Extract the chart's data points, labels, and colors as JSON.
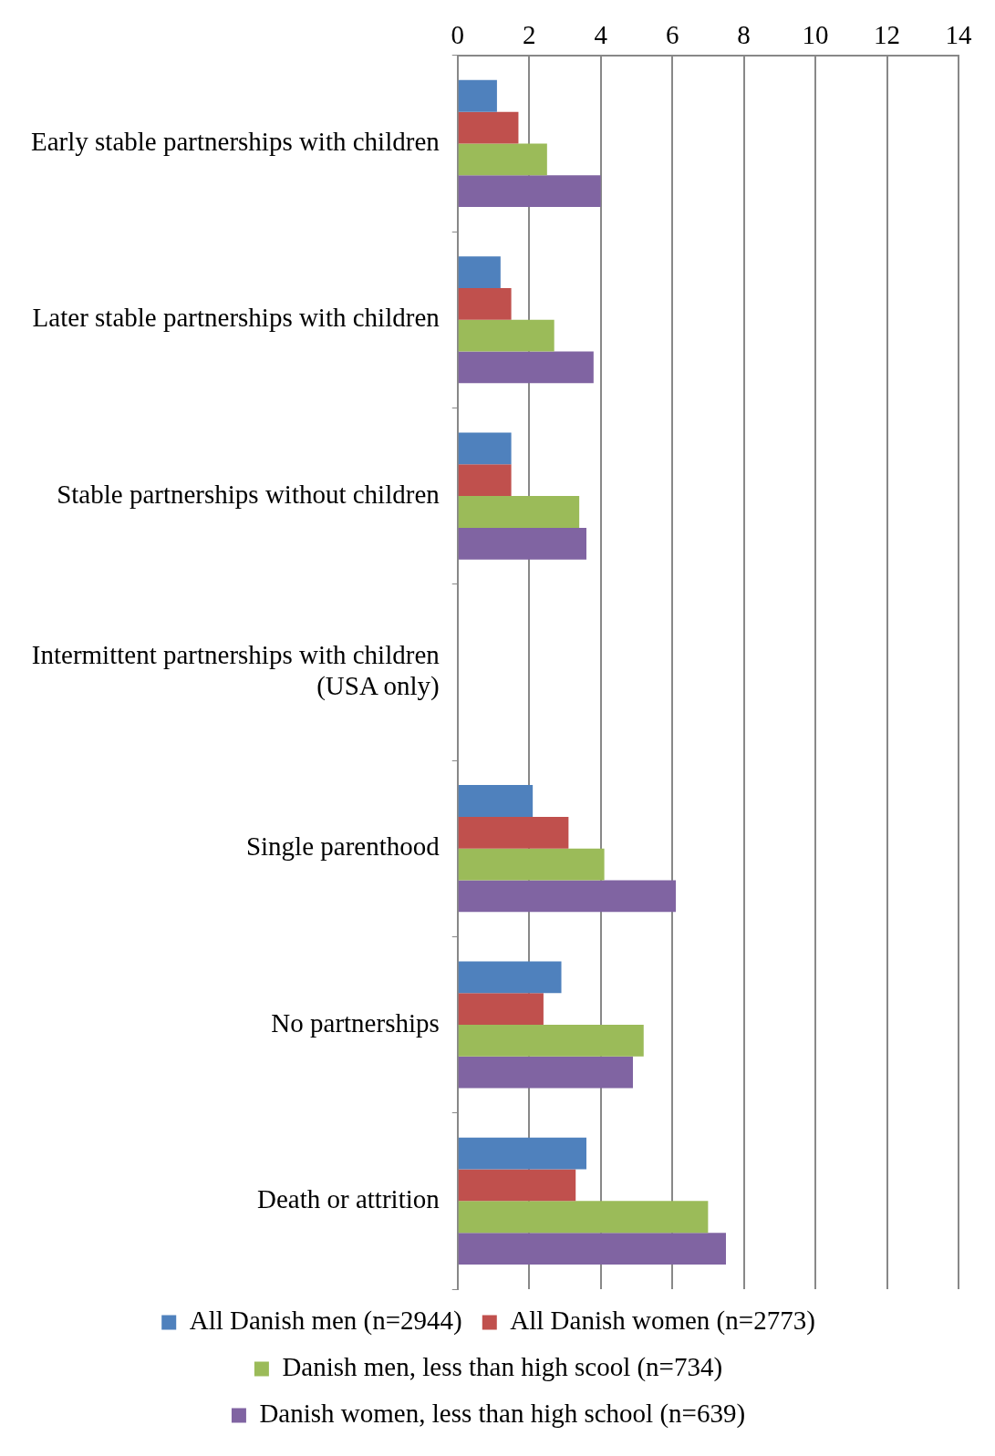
{
  "chart_data": {
    "type": "bar",
    "orientation": "horizontal",
    "categories": [
      "Early stable partnerships with children",
      "Later stable partnerships with children",
      "Stable partnerships without children",
      "Intermittent partnerships with children (USA only)",
      "Single parenthood",
      "No partnerships",
      "Death or attrition"
    ],
    "series": [
      {
        "name": "All Danish men (n=2944)",
        "color": "#4f81bd",
        "values": [
          1.1,
          1.2,
          1.5,
          null,
          2.1,
          2.9,
          3.6
        ]
      },
      {
        "name": "All Danish women (n=2773)",
        "color": "#c0504d",
        "values": [
          1.7,
          1.5,
          1.5,
          null,
          3.1,
          2.4,
          3.3
        ]
      },
      {
        "name": "Danish men, less than high scool (n=734)",
        "color": "#9bbb59",
        "values": [
          2.5,
          2.7,
          3.4,
          null,
          4.1,
          5.2,
          7.0
        ]
      },
      {
        "name": "Danish women, less than high school (n=639)",
        "color": "#8064a2",
        "values": [
          4.0,
          3.8,
          3.6,
          null,
          6.1,
          4.9,
          7.5
        ]
      }
    ],
    "xlim": [
      0,
      14
    ],
    "xticks": [
      0,
      2,
      4,
      6,
      8,
      10,
      12,
      14
    ],
    "grid": "x",
    "legend": "bottom"
  }
}
